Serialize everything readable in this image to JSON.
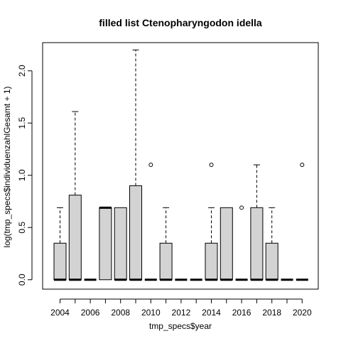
{
  "chart_data": {
    "type": "boxplot",
    "title": "filled list Ctenopharyngodon idella",
    "xlabel": "tmp_specs$year",
    "ylabel": "log(tmp_specs$individuenzahlGesamt + 1)",
    "ylim": [
      -0.09,
      2.27
    ],
    "y_ticks": [
      0.0,
      0.5,
      1.0,
      1.5,
      2.0
    ],
    "y_tick_labels": [
      "0.0",
      "0.5",
      "1.0",
      "1.5",
      "2.0"
    ],
    "x_tick_labels": [
      "2004",
      "2006",
      "2008",
      "2010",
      "2012",
      "2014",
      "2016",
      "2018",
      "2020"
    ],
    "box_fill": "#d3d3d3",
    "boxes": [
      {
        "year": "2004",
        "lower_whisker": 0.0,
        "q1": 0.0,
        "median": 0.0,
        "q3": 0.35,
        "upper_whisker": 0.69,
        "outliers": []
      },
      {
        "year": "2005",
        "lower_whisker": 0.0,
        "q1": 0.0,
        "median": 0.0,
        "q3": 0.81,
        "upper_whisker": 1.61,
        "outliers": []
      },
      {
        "year": "2006",
        "lower_whisker": 0.0,
        "q1": 0.0,
        "median": 0.0,
        "q3": 0.0,
        "upper_whisker": 0.0,
        "outliers": []
      },
      {
        "year": "2007",
        "lower_whisker": 0.0,
        "q1": 0.0,
        "median": 0.69,
        "q3": 0.69,
        "upper_whisker": 0.69,
        "outliers": []
      },
      {
        "year": "2008",
        "lower_whisker": 0.0,
        "q1": 0.0,
        "median": 0.0,
        "q3": 0.69,
        "upper_whisker": 0.69,
        "outliers": []
      },
      {
        "year": "2009",
        "lower_whisker": 0.0,
        "q1": 0.0,
        "median": 0.0,
        "q3": 0.9,
        "upper_whisker": 2.2,
        "outliers": []
      },
      {
        "year": "2010",
        "lower_whisker": 0.0,
        "q1": 0.0,
        "median": 0.0,
        "q3": 0.0,
        "upper_whisker": 0.0,
        "outliers": [
          1.1
        ]
      },
      {
        "year": "2011",
        "lower_whisker": 0.0,
        "q1": 0.0,
        "median": 0.0,
        "q3": 0.35,
        "upper_whisker": 0.69,
        "outliers": []
      },
      {
        "year": "2012",
        "lower_whisker": 0.0,
        "q1": 0.0,
        "median": 0.0,
        "q3": 0.0,
        "upper_whisker": 0.0,
        "outliers": []
      },
      {
        "year": "2013",
        "lower_whisker": 0.0,
        "q1": 0.0,
        "median": 0.0,
        "q3": 0.0,
        "upper_whisker": 0.0,
        "outliers": []
      },
      {
        "year": "2014",
        "lower_whisker": 0.0,
        "q1": 0.0,
        "median": 0.0,
        "q3": 0.35,
        "upper_whisker": 0.69,
        "outliers": [
          1.1
        ]
      },
      {
        "year": "2015",
        "lower_whisker": 0.0,
        "q1": 0.0,
        "median": 0.0,
        "q3": 0.69,
        "upper_whisker": 0.69,
        "outliers": []
      },
      {
        "year": "2016",
        "lower_whisker": 0.0,
        "q1": 0.0,
        "median": 0.0,
        "q3": 0.0,
        "upper_whisker": 0.0,
        "outliers": [
          0.69
        ]
      },
      {
        "year": "2017",
        "lower_whisker": 0.0,
        "q1": 0.0,
        "median": 0.0,
        "q3": 0.69,
        "upper_whisker": 1.1,
        "outliers": []
      },
      {
        "year": "2018",
        "lower_whisker": 0.0,
        "q1": 0.0,
        "median": 0.0,
        "q3": 0.35,
        "upper_whisker": 0.69,
        "outliers": []
      },
      {
        "year": "2019",
        "lower_whisker": 0.0,
        "q1": 0.0,
        "median": 0.0,
        "q3": 0.0,
        "upper_whisker": 0.0,
        "outliers": []
      },
      {
        "year": "2020",
        "lower_whisker": 0.0,
        "q1": 0.0,
        "median": 0.0,
        "q3": 0.0,
        "upper_whisker": 0.0,
        "outliers": [
          1.1
        ]
      }
    ]
  }
}
